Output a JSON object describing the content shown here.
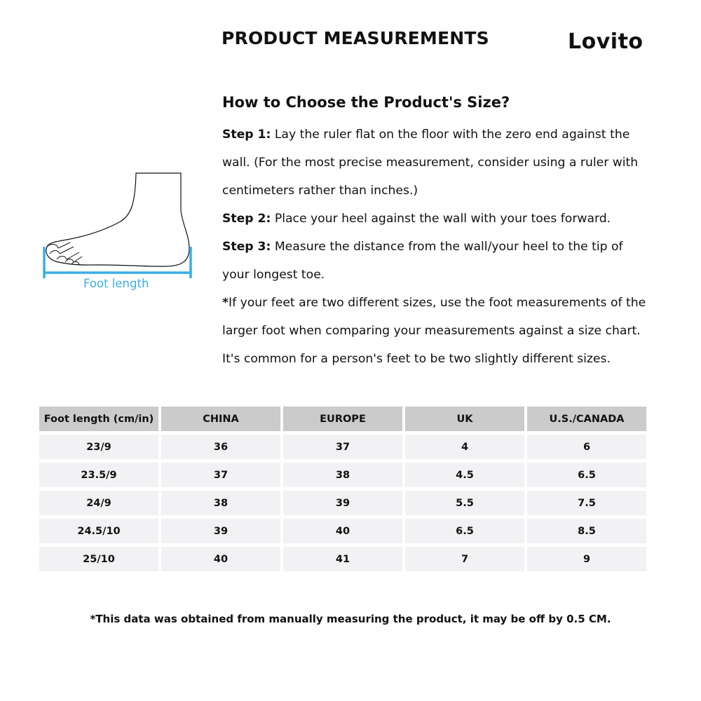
{
  "header": {
    "title": "PRODUCT MEASUREMENTS",
    "logo": "Lovito"
  },
  "guide": {
    "heading": "How to Choose the Product's Size?",
    "steps": [
      {
        "label": "Step 1:",
        "lines": [
          " Lay the ruler flat on the floor with the zero end against the",
          "wall. (For the most precise measurement, consider using a ruler with",
          "centimeters rather than inches.)"
        ]
      },
      {
        "label": "Step 2:",
        "lines": [
          " Place your heel against the wall with your toes forward."
        ]
      },
      {
        "label": "Step 3:",
        "lines": [
          " Measure the distance from the wall/your heel to the tip of",
          "your longest toe."
        ]
      }
    ],
    "note_star": "*",
    "note_lines": [
      "If your feet are two different sizes, use the foot measurements of the",
      "larger foot when comparing your measurements against a size chart.",
      "It's common for a person's feet to be two slightly different sizes."
    ]
  },
  "illustration": {
    "label": "Foot length",
    "accent_color": "#3aaee6"
  },
  "size_table": {
    "headers": [
      "Foot length (cm/in)",
      "CHINA",
      "EUROPE",
      "UK",
      "U.S./CANADA"
    ],
    "rows": [
      [
        "23/9",
        "36",
        "37",
        "4",
        "6"
      ],
      [
        "23.5/9",
        "37",
        "38",
        "4.5",
        "6.5"
      ],
      [
        "24/9",
        "38",
        "39",
        "5.5",
        "7.5"
      ],
      [
        "24.5/10",
        "39",
        "40",
        "6.5",
        "8.5"
      ],
      [
        "25/10",
        "40",
        "41",
        "7",
        "9"
      ]
    ]
  },
  "footer_note": "*This data was obtained from manually measuring the product, it may be off by 0.5 CM."
}
